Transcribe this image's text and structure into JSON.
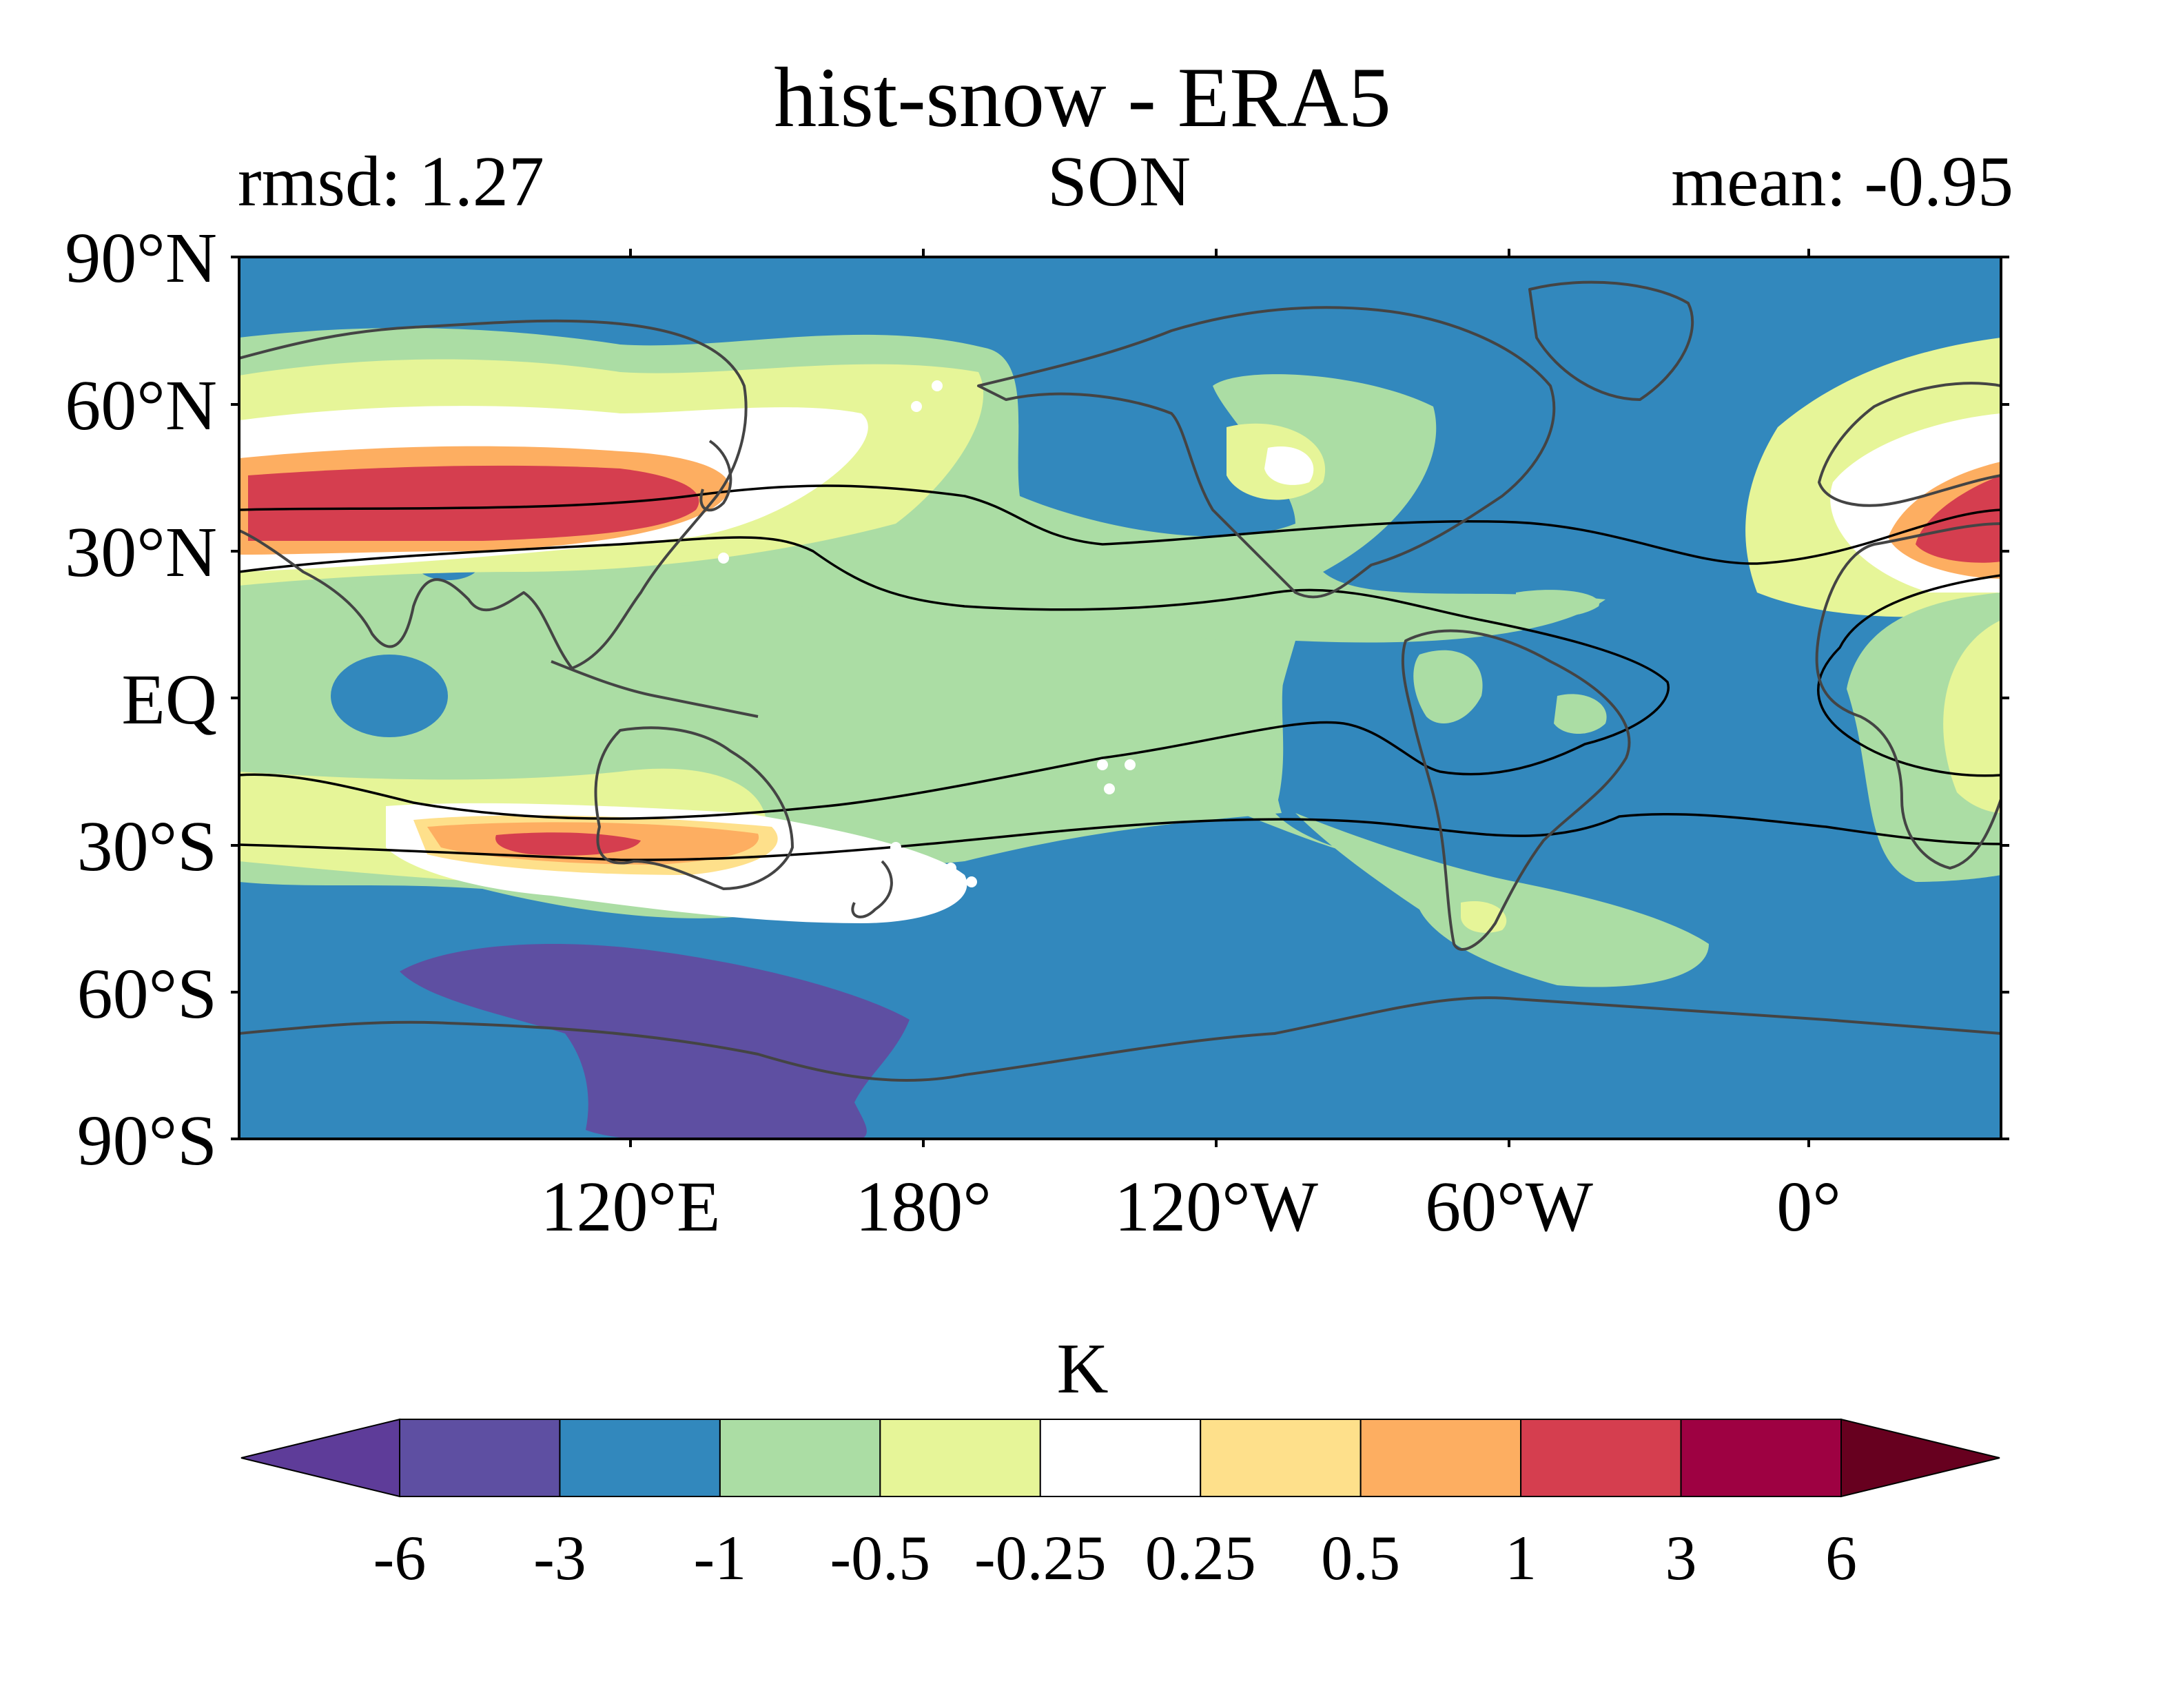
{
  "title": "hist-snow - ERA5",
  "subtitle_left": "rmsd: 1.27",
  "subtitle_center": "SON",
  "subtitle_right": "mean: -0.95",
  "lat_labels": [
    "90°N",
    "60°N",
    "30°N",
    "EQ",
    "30°S",
    "60°S",
    "90°S"
  ],
  "lon_labels": [
    "120°E",
    "180°",
    "120°W",
    "60°W",
    "0°"
  ],
  "colorbar": {
    "units": "K",
    "tick_labels": [
      "-6",
      "-3",
      "-1",
      "-0.5",
      "-0.25",
      "0.25",
      "0.5",
      "1",
      "3",
      "6"
    ],
    "colors": [
      "#5e3c99",
      "#5e4fa2",
      "#3288bd",
      "#abdda4",
      "#e6f598",
      "#ffffff",
      "#fee08b",
      "#fdae61",
      "#d53e4f",
      "#9e0142",
      "#67001f"
    ]
  },
  "map": {
    "projection": "PlateCarree",
    "central_longitude": "180 offset (map spans ~40°E to ~40°E)",
    "lat_range": [
      -90,
      90
    ],
    "colors": {
      "background": "#3288bd",
      "coast": "#444444",
      "contour": "#000000"
    }
  }
}
